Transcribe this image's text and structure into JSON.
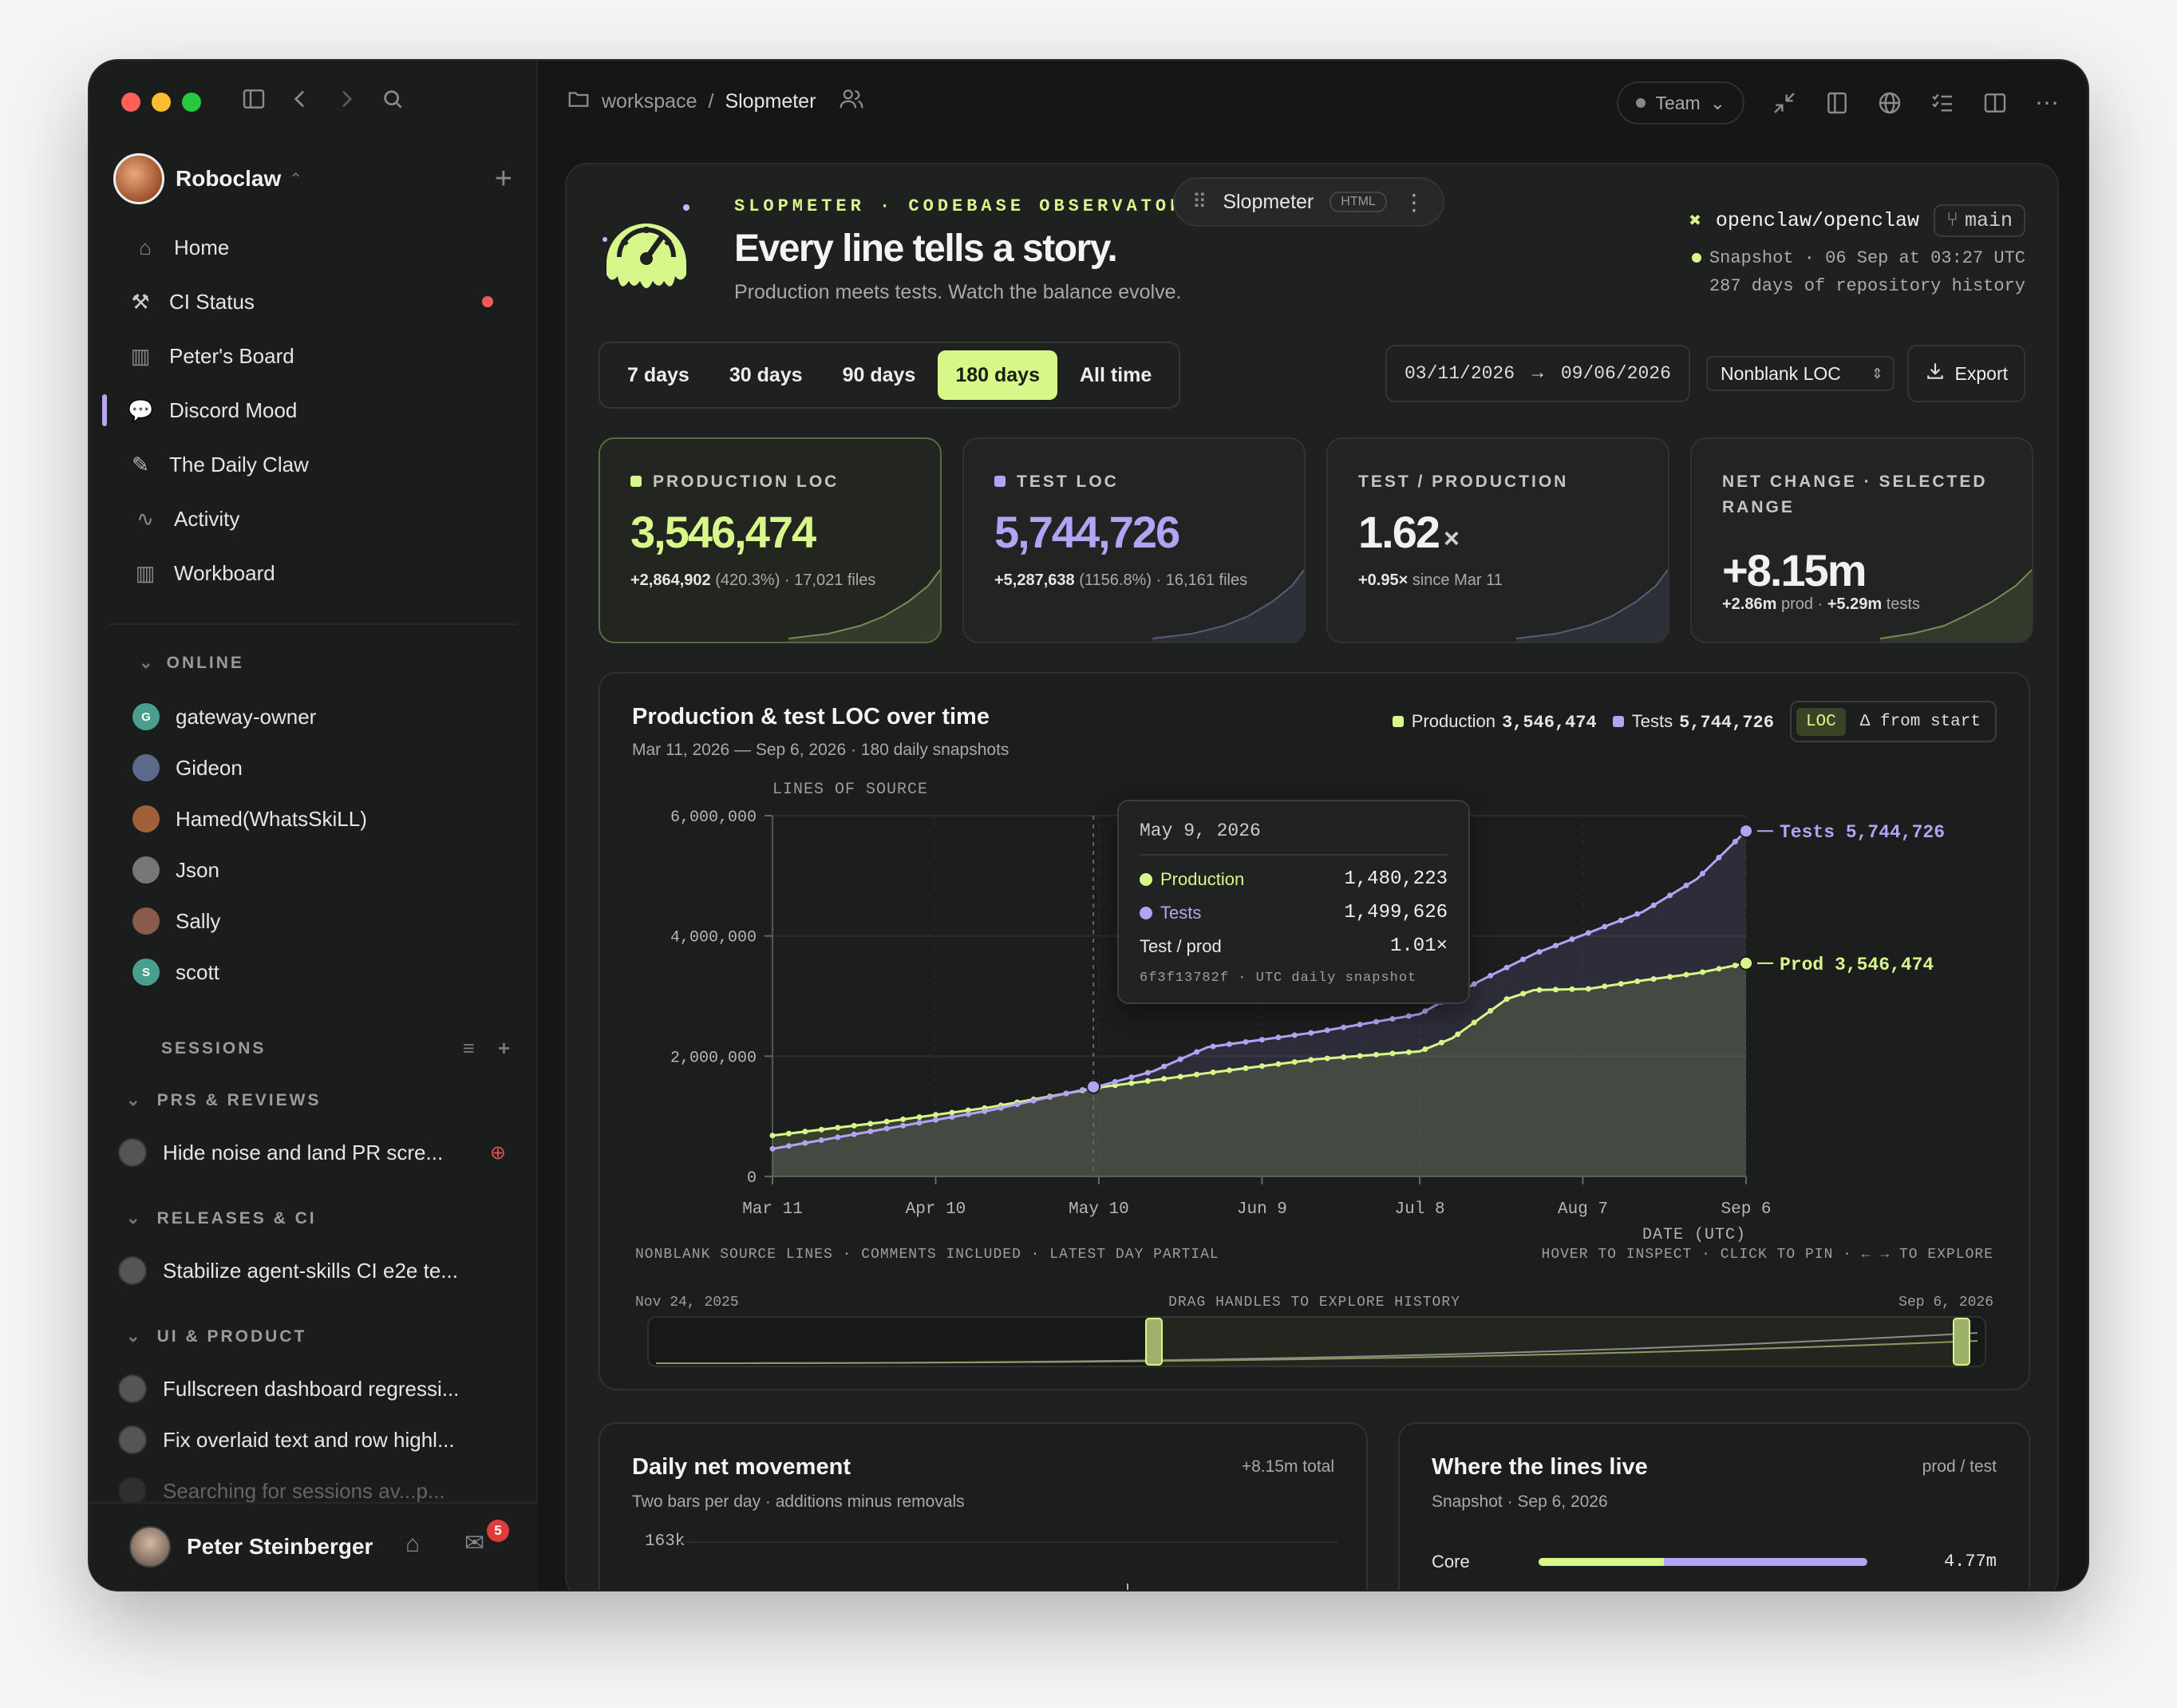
{
  "sidebar": {
    "workspace_name": "Roboclaw",
    "nav": [
      {
        "label": "Home",
        "icon": "home-icon"
      },
      {
        "label": "CI Status",
        "icon": "hammer-icon"
      },
      {
        "label": "Peter's Board",
        "icon": "board-icon"
      },
      {
        "label": "Discord Mood",
        "icon": "speech-bubble-icon"
      },
      {
        "label": "The Daily Claw",
        "icon": "newspaper-icon"
      },
      {
        "label": "Activity",
        "icon": "activity-icon"
      },
      {
        "label": "Workboard",
        "icon": "board-icon"
      }
    ],
    "online_label": "ONLINE",
    "online": [
      {
        "name": "gateway-owner",
        "initial": "G",
        "color": "#4a9e8e"
      },
      {
        "name": "Gideon",
        "initial": "",
        "color": "#5b6a8a"
      },
      {
        "name": "Hamed(WhatsSkiLL)",
        "initial": "",
        "color": "#a0603a"
      },
      {
        "name": "Json",
        "initial": "",
        "color": "#777777"
      },
      {
        "name": "Sally",
        "initial": "",
        "color": "#8a5a4a"
      },
      {
        "name": "scott",
        "initial": "S",
        "color": "#4a9e8e"
      }
    ],
    "sessions_label": "SESSIONS",
    "groups": [
      {
        "label": "PRS & REVIEWS",
        "items": [
          "Hide noise and land PR scre..."
        ]
      },
      {
        "label": "RELEASES & CI",
        "items": [
          "Stabilize agent-skills CI e2e te..."
        ]
      },
      {
        "label": "UI & PRODUCT",
        "items": [
          "Fullscreen dashboard regressi...",
          "Fix overlaid text and row highl...",
          "Searching for sessions av...p..."
        ]
      }
    ],
    "user_name": "Peter Steinberger",
    "inbox_count": "5"
  },
  "topbar": {
    "crumb_root": "workspace",
    "crumb_sep": "/",
    "crumb_page": "Slopmeter",
    "team_label": "Team"
  },
  "doc_tab": {
    "title": "Slopmeter",
    "badge": "HTML"
  },
  "hero": {
    "eyebrow": "SLOPMETER · CODEBASE OBSERVATORY",
    "title": "Every line tells a story.",
    "subtitle": "Production meets tests. Watch the balance evolve."
  },
  "repo": {
    "name": "openclaw/openclaw",
    "branch": "main",
    "snapshot": "Snapshot · 06 Sep at 03:27 UTC",
    "history": "287 days of repository history"
  },
  "range_buttons": [
    "7 days",
    "30 days",
    "90 days",
    "180 days",
    "All time"
  ],
  "range_selected": "180 days",
  "dates": {
    "from": "03/11/2026",
    "arrow": "→",
    "to": "09/06/2026"
  },
  "metric_select": "Nonblank LOC",
  "export_label": "Export",
  "stats": [
    {
      "label": "PRODUCTION LOC",
      "value": "3,546,474",
      "detail_strong": "+2,864,902",
      "detail": " (420.3%) · 17,021 files",
      "color": "#d8f78b"
    },
    {
      "label": "TEST LOC",
      "value": "5,744,726",
      "detail_strong": "+5,287,638",
      "detail": " (1156.8%) · 16,161 files",
      "color": "#b4a3f5"
    },
    {
      "label": "TEST / PRODUCTION",
      "value": "1.62",
      "unit": "×",
      "detail_strong": "+0.95×",
      "detail": " since Mar 11",
      "color": "#f1f1ef"
    },
    {
      "label": "NET CHANGE · SELECTED RANGE",
      "value": "+8.15m",
      "detail_strong": "+2.86m",
      "detail": " prod · ",
      "detail_strong2": "+5.29m",
      "detail2": " tests",
      "color": "#f1f1ef"
    }
  ],
  "chart": {
    "title": "Production & test LOC over time",
    "subtitle": "Mar 11, 2026 — Sep 6, 2026 · 180 daily snapshots",
    "y_axis_title": "LINES OF SOURCE",
    "x_axis_title": "DATE (UTC)",
    "legend_prod": "Production",
    "legend_prod_value": "3,546,474",
    "legend_tests": "Tests",
    "legend_tests_value": "5,744,726",
    "toggle_on": "LOC",
    "toggle_off": "Δ from start",
    "end_label_tests": "Tests 5,744,726",
    "end_label_prod": "Prod 3,546,474",
    "footer_left": "NONBLANK SOURCE LINES · COMMENTS INCLUDED · LATEST DAY PARTIAL",
    "footer_right": "HOVER TO INSPECT · CLICK TO PIN · ← → TO EXPLORE",
    "brush_start": "Nov 24, 2025",
    "brush_hint": "DRAG HANDLES TO EXPLORE HISTORY",
    "brush_end": "Sep 6, 2026",
    "tooltip": {
      "date": "May 9, 2026",
      "prod_label": "Production",
      "prod_value": "1,480,223",
      "tests_label": "Tests",
      "tests_value": "1,499,626",
      "ratio_label": "Test / prod",
      "ratio_value": "1.01×",
      "footer": "6f3f13782f · UTC daily snapshot"
    }
  },
  "chart_data": {
    "type": "line",
    "title": "Production & test LOC over time",
    "xlabel": "DATE (UTC)",
    "ylabel": "LINES OF SOURCE",
    "ylim": [
      0,
      6000000
    ],
    "y_ticks": [
      "0",
      "2,000,000",
      "4,000,000",
      "6,000,000"
    ],
    "y_tick_values": [
      0,
      2000000,
      4000000,
      6000000
    ],
    "x_ticks": [
      "Mar 11",
      "Apr 10",
      "May 10",
      "Jun 9",
      "Jul 8",
      "Aug 7",
      "Sep 6"
    ],
    "x_tick_days": [
      0,
      30,
      60,
      90,
      119,
      149,
      179
    ],
    "x_days_total": 179,
    "grid": true,
    "series": [
      {
        "name": "Production",
        "color": "#d8f78b",
        "days": [
          0,
          20,
          40,
          60,
          80,
          100,
          119,
          125,
          135,
          140,
          150,
          160,
          170,
          179
        ],
        "values": [
          680000,
          900000,
          1150000,
          1480000,
          1720000,
          1950000,
          2080000,
          2300000,
          2950000,
          3100000,
          3120000,
          3260000,
          3380000,
          3546474
        ]
      },
      {
        "name": "Tests",
        "color": "#b4a3f5",
        "days": [
          0,
          20,
          40,
          60,
          70,
          80,
          100,
          119,
          130,
          140,
          150,
          160,
          170,
          179
        ],
        "values": [
          460000,
          780000,
          1100000,
          1499626,
          1750000,
          2150000,
          2400000,
          2700000,
          3250000,
          3700000,
          4050000,
          4400000,
          4950000,
          5744726
        ]
      }
    ]
  },
  "daily": {
    "title": "Daily net movement",
    "subtitle": "Two bars per day · additions minus removals",
    "total": "+8.15m total",
    "y_top": "163k"
  },
  "where": {
    "title": "Where the lines live",
    "subtitle": "Snapshot · Sep 6, 2026",
    "unit_label": "prod / test",
    "rows": [
      {
        "label": "Core",
        "value": "4.77m",
        "prod_share": 0.38
      }
    ]
  }
}
